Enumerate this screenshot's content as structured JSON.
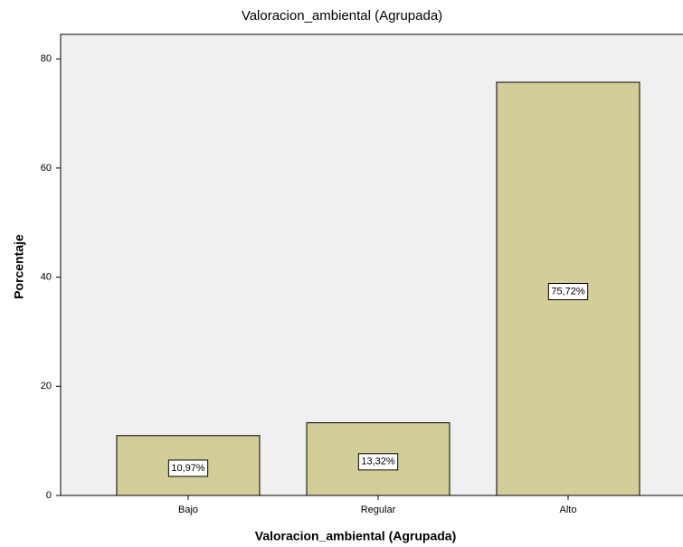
{
  "chart_data": {
    "type": "bar",
    "title": "Valoracion_ambiental (Agrupada)",
    "x_label": "Valoracion_ambiental (Agrupada)",
    "y_label": "Porcentaje",
    "categories": [
      "Bajo",
      "Regular",
      "Alto"
    ],
    "values": [
      10.97,
      13.32,
      75.72
    ],
    "value_labels": [
      "10,97%",
      "13,32%",
      "75,72%"
    ],
    "color": "#d3ce98",
    "ylim": [
      0,
      84.5
    ],
    "yticks": [
      0,
      20,
      40,
      60,
      80
    ],
    "grid": false
  }
}
